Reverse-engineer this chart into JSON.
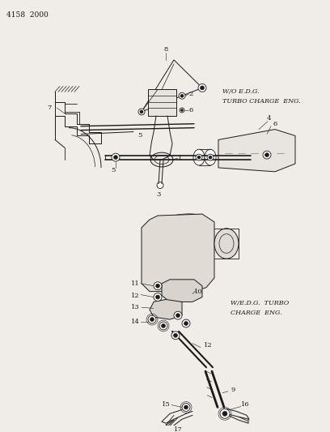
{
  "bg_color": "#f0ede8",
  "title_text": "4158  2000",
  "line_color": "#1a1a1a",
  "text_color": "#1a1a1a",
  "part_label_fontsize": 6.0,
  "annotation_fontsize": 5.8,
  "label_top1": "W/O E.D.G.",
  "label_top2": "TURBO CHARGE  ENG.",
  "label_bot1": "W/E.D.G.  TURBO",
  "label_bot2": "CHARGE  ENG."
}
